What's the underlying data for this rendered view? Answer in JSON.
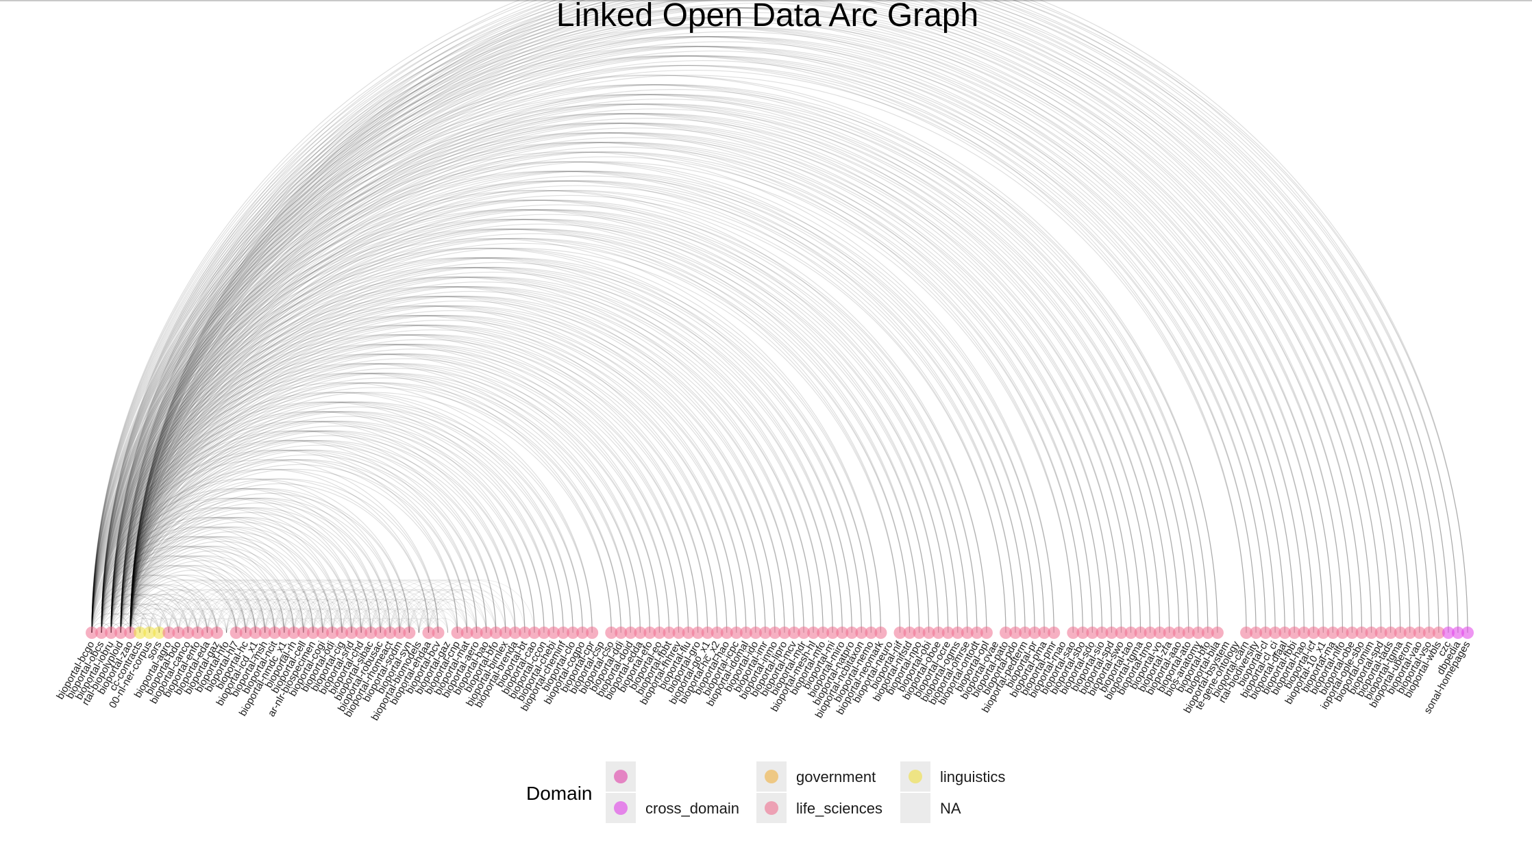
{
  "chart_data": {
    "type": "arc",
    "title": "Linked Open Data Arc Graph",
    "nodes": [
      {
        "label": "bioportal-bcgo",
        "domain": "life_sciences"
      },
      {
        "label": "bioportal-obcs",
        "domain": "life_sciences"
      },
      {
        "label": "bioportal-iobru",
        "domain": "life_sciences"
      },
      {
        "label": "rtal-biopolyploid",
        "domain": "life_sciences"
      },
      {
        "label": "bioportal-zao",
        "domain": "life_sciences"
      },
      {
        "label": "cc-contracts",
        "domain": "linguistics"
      },
      {
        "label": "00-nl-ner-corpus",
        "domain": "linguistics"
      },
      {
        "label": "sors",
        "domain": "linguistics"
      },
      {
        "label": "bioportal-agro",
        "domain": "life_sciences"
      },
      {
        "label": "bioportal-bdo",
        "domain": "life_sciences"
      },
      {
        "label": "bioportal-canco",
        "domain": "life_sciences"
      },
      {
        "label": "bioportal-enfo",
        "domain": "life_sciences"
      },
      {
        "label": "bioportal-eda",
        "domain": "life_sciences"
      },
      {
        "label": "bioportal-gaz",
        "domain": "life_sciences"
      },
      {
        "label": "bioportal-hfo",
        "domain": null
      },
      {
        "label": "bioportal-hl7",
        "domain": "life_sciences"
      },
      {
        "label": "bioportal-hc",
        "domain": "life_sciences"
      },
      {
        "label": "bioportal-icd_x1",
        "domain": "life_sciences"
      },
      {
        "label": "bioportal-msh",
        "domain": "life_sciences"
      },
      {
        "label": "bioportal-ncit",
        "domain": "life_sciences"
      },
      {
        "label": "bioportal-nmdc_x1",
        "domain": "life_sciences"
      },
      {
        "label": "bioportal-rh",
        "domain": "life_sciences"
      },
      {
        "label": "bioportal-cell",
        "domain": "life_sciences"
      },
      {
        "label": "ar-nlr-biospecimen",
        "domain": "life_sciences"
      },
      {
        "label": "bioportal-cogi",
        "domain": "life_sciences"
      },
      {
        "label": "bioportal-odi",
        "domain": "life_sciences"
      },
      {
        "label": "bioportal-cig",
        "domain": "life_sciences"
      },
      {
        "label": "bioportal-srid",
        "domain": "life_sciences"
      },
      {
        "label": "bioportal-chd",
        "domain": "life_sciences"
      },
      {
        "label": "bioportal-sibac",
        "domain": "life_sciences"
      },
      {
        "label": "bioportal-robusac",
        "domain": "life_sciences"
      },
      {
        "label": "bioportal-rhomeact",
        "domain": "life_sciences"
      },
      {
        "label": "bioportal-sodm",
        "domain": "life_sciences"
      },
      {
        "label": "bioportal-syn",
        "domain": "life_sciences"
      },
      {
        "label": "bioportal-biomodels",
        "domain": null
      },
      {
        "label": "bioportal-ehdaa",
        "domain": "life_sciences"
      },
      {
        "label": "bioportal-bcv",
        "domain": "life_sciences"
      },
      {
        "label": "bioportal-gaz",
        "domain": null
      },
      {
        "label": "bioportal-cnp",
        "domain": "life_sciences"
      },
      {
        "label": "bioportal-mat",
        "domain": "life_sciences"
      },
      {
        "label": "bioportal-aero",
        "domain": "life_sciences"
      },
      {
        "label": "bioportal-bao",
        "domain": "life_sciences"
      },
      {
        "label": "bioportal-bfo",
        "domain": "life_sciences"
      },
      {
        "label": "bioportal-birnlex",
        "domain": "life_sciences"
      },
      {
        "label": "bioportal-brenda",
        "domain": "life_sciences"
      },
      {
        "label": "bioportal-bt",
        "domain": "life_sciences"
      },
      {
        "label": "bioportal-cao",
        "domain": "life_sciences"
      },
      {
        "label": "bioportal-ccon",
        "domain": "life_sciences"
      },
      {
        "label": "bioportal-chebi",
        "domain": "life_sciences"
      },
      {
        "label": "bioportal-cheminf",
        "domain": "life_sciences"
      },
      {
        "label": "bioportal-clo",
        "domain": "life_sciences"
      },
      {
        "label": "bioportal-cogpo",
        "domain": "life_sciences"
      },
      {
        "label": "bioportal-cpr",
        "domain": "life_sciences"
      },
      {
        "label": "bioportal-csp",
        "domain": null
      },
      {
        "label": "bioportal-cso",
        "domain": "life_sciences"
      },
      {
        "label": "bioportal-ddi",
        "domain": "life_sciences"
      },
      {
        "label": "bioportal-doid",
        "domain": "life_sciences"
      },
      {
        "label": "bioportal-edda",
        "domain": "life_sciences"
      },
      {
        "label": "bioportal-efo",
        "domain": "life_sciences"
      },
      {
        "label": "bioportal-eo",
        "domain": "life_sciences"
      },
      {
        "label": "bioportal-fbbt",
        "domain": "life_sciences"
      },
      {
        "label": "bioportal-fhhrev",
        "domain": "life_sciences"
      },
      {
        "label": "bioportal-flu",
        "domain": "life_sciences"
      },
      {
        "label": "bioportal-gro",
        "domain": "life_sciences"
      },
      {
        "label": "bioportal-go_x1",
        "domain": "life_sciences"
      },
      {
        "label": "bioportal-hc_x2",
        "domain": "life_sciences"
      },
      {
        "label": "bioportal-hao",
        "domain": "life_sciences"
      },
      {
        "label": "bioportal-icpc",
        "domain": "life_sciences"
      },
      {
        "label": "bioportal-idomal",
        "domain": "life_sciences"
      },
      {
        "label": "bioportal-ido",
        "domain": "life_sciences"
      },
      {
        "label": "bioportal-imr",
        "domain": "life_sciences"
      },
      {
        "label": "bioportal-inmo",
        "domain": "life_sciences"
      },
      {
        "label": "bioportal-lipro",
        "domain": "life_sciences"
      },
      {
        "label": "bioportal-mcv",
        "domain": "life_sciences"
      },
      {
        "label": "bioportal-mdr",
        "domain": "life_sciences"
      },
      {
        "label": "bioportal-mesh-hl",
        "domain": "life_sciences"
      },
      {
        "label": "bioportal-mfo",
        "domain": "life_sciences"
      },
      {
        "label": "bioportal-mi",
        "domain": "life_sciences"
      },
      {
        "label": "bioportal-miro",
        "domain": "life_sciences"
      },
      {
        "label": "bioportal-natpro",
        "domain": "life_sciences"
      },
      {
        "label": "bioportal-ncbitaxon",
        "domain": "life_sciences"
      },
      {
        "label": "bioportal-nemo",
        "domain": "life_sciences"
      },
      {
        "label": "bioportal-neomark",
        "domain": "life_sciences"
      },
      {
        "label": "bioportal-neuro",
        "domain": null
      },
      {
        "label": "bioportal-nif",
        "domain": "life_sciences"
      },
      {
        "label": "bioportal-nifstd",
        "domain": "life_sciences"
      },
      {
        "label": "bioportal-npo",
        "domain": "life_sciences"
      },
      {
        "label": "bioportal-obi",
        "domain": "life_sciences"
      },
      {
        "label": "bioportal-oboe",
        "domain": "life_sciences"
      },
      {
        "label": "bioportal-ocre",
        "domain": "life_sciences"
      },
      {
        "label": "bioportal-ogms",
        "domain": "life_sciences"
      },
      {
        "label": "bioportal-omrse",
        "domain": "life_sciences"
      },
      {
        "label": "bioportal-ontodt",
        "domain": "life_sciences"
      },
      {
        "label": "bioportal-opl",
        "domain": "life_sciences"
      },
      {
        "label": "bioportal-ovae",
        "domain": null
      },
      {
        "label": "bioportal-pato",
        "domain": "life_sciences"
      },
      {
        "label": "bioportal-pdo",
        "domain": "life_sciences"
      },
      {
        "label": "bioportal-pedterm",
        "domain": "life_sciences"
      },
      {
        "label": "bioportal-pr",
        "domain": "life_sciences"
      },
      {
        "label": "bioportal-pma",
        "domain": "life_sciences"
      },
      {
        "label": "bioportal-pmr",
        "domain": "life_sciences"
      },
      {
        "label": "bioportal-rnao",
        "domain": null
      },
      {
        "label": "bioportal-sao",
        "domain": "life_sciences"
      },
      {
        "label": "bioportal-sbo",
        "domain": "life_sciences"
      },
      {
        "label": "bioportal-sdo",
        "domain": "life_sciences"
      },
      {
        "label": "bioportal-sio",
        "domain": "life_sciences"
      },
      {
        "label": "bioportal-spd",
        "domain": "life_sciences"
      },
      {
        "label": "bioportal-swo",
        "domain": "life_sciences"
      },
      {
        "label": "bioportal-tao",
        "domain": "life_sciences"
      },
      {
        "label": "bioportal-tgma",
        "domain": "life_sciences"
      },
      {
        "label": "bioportal-tmo",
        "domain": "life_sciences"
      },
      {
        "label": "bioportal-vo",
        "domain": "life_sciences"
      },
      {
        "label": "bioportal-zfa",
        "domain": "life_sciences"
      },
      {
        "label": "bioportal-aao",
        "domain": "life_sciences"
      },
      {
        "label": "bioportal-ato",
        "domain": "life_sciences"
      },
      {
        "label": "bios-anatomy",
        "domain": "life_sciences"
      },
      {
        "label": "bioportal-bfo",
        "domain": "life_sciences"
      },
      {
        "label": "bioportal-bila",
        "domain": "life_sciences"
      },
      {
        "label": "bioportal-bsystem",
        "domain": null
      },
      {
        "label": "te-gene-ontology",
        "domain": null
      },
      {
        "label": "bioportal-carn",
        "domain": "life_sciences"
      },
      {
        "label": "rtal-biodiversity",
        "domain": "life_sciences"
      },
      {
        "label": "bioportal-cl",
        "domain": "life_sciences"
      },
      {
        "label": "bioportal-cl_ci",
        "domain": "life_sciences"
      },
      {
        "label": "bioportal-dfaal",
        "domain": "life_sciences"
      },
      {
        "label": "bioportal-fbbi",
        "domain": "life_sciences"
      },
      {
        "label": "bioportal-hao",
        "domain": "life_sciences"
      },
      {
        "label": "bioportal-icf",
        "domain": "life_sciences"
      },
      {
        "label": "bioportal-10_x1",
        "domain": "life_sciences"
      },
      {
        "label": "bioportal-ma",
        "domain": "life_sciences"
      },
      {
        "label": "bioportal-nlfo",
        "domain": "life_sciences"
      },
      {
        "label": "bioportal-obe",
        "domain": "life_sciences"
      },
      {
        "label": "ioportal-ople-sbo",
        "domain": "life_sciences"
      },
      {
        "label": "bioportal-omim",
        "domain": "life_sciences"
      },
      {
        "label": "bioportal-spd",
        "domain": "life_sciences"
      },
      {
        "label": "bioportal-tads",
        "domain": "life_sciences"
      },
      {
        "label": "bioportal-tgma",
        "domain": "life_sciences"
      },
      {
        "label": "bioportal-uberon",
        "domain": "life_sciences"
      },
      {
        "label": "bioportal-vao",
        "domain": "life_sciences"
      },
      {
        "label": "bioportal-vso",
        "domain": "life_sciences"
      },
      {
        "label": "bioportal-wbls",
        "domain": "life_sciences"
      },
      {
        "label": "czc",
        "domain": "cross_domain"
      },
      {
        "label": "dbpedia",
        "domain": "cross_domain"
      },
      {
        "label": "sonal-homepages",
        "domain": "cross_domain"
      }
    ],
    "legend": {
      "title": "Domain",
      "placement": "bottom",
      "entries": [
        {
          "key": "",
          "label": "",
          "color": "#e040a8"
        },
        {
          "key": "cross_domain",
          "label": "cross_domain",
          "color": "#e040e8"
        },
        {
          "key": "government",
          "label": "government",
          "color": "#f0b040"
        },
        {
          "key": "life_sciences",
          "label": "life_sciences",
          "color": "#ee7090"
        },
        {
          "key": "linguistics",
          "label": "linguistics",
          "color": "#f0e040"
        },
        {
          "key": "NA",
          "label": "NA",
          "color": "#d8d8d8"
        }
      ]
    },
    "colors": {
      "edge": "#000000",
      "background": "#ffffff"
    }
  }
}
